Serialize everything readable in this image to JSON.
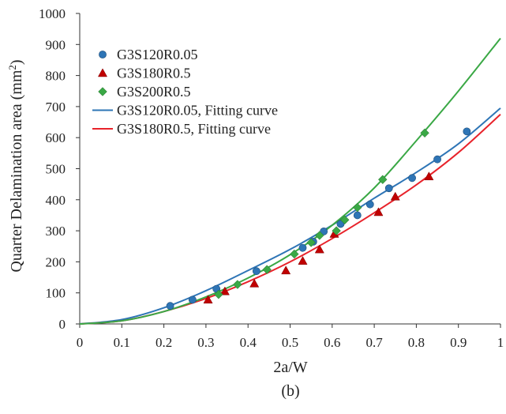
{
  "chart_data": {
    "type": "scatter",
    "xlabel": "2a/W",
    "ylabel_text": "Quarter Delamination area (mm",
    "ylabel_sup": "2",
    "ylabel_close": ")",
    "panel_label": "(b)",
    "xlim": [
      0,
      1
    ],
    "ylim": [
      0,
      1000
    ],
    "x_ticks": [
      "0",
      "0.1",
      "0.2",
      "0.3",
      "0.4",
      "0.5",
      "0.6",
      "0.7",
      "0.8",
      "0.9",
      "1"
    ],
    "y_ticks": [
      "0",
      "100",
      "200",
      "300",
      "400",
      "500",
      "600",
      "700",
      "800",
      "900",
      "1000"
    ],
    "grid": false,
    "legend_position": "top-left",
    "series": [
      {
        "name": "G3S120R0.05",
        "kind": "markers",
        "marker": "circle",
        "color": "#2e75b6",
        "points": [
          [
            0.215,
            58
          ],
          [
            0.268,
            78
          ],
          [
            0.325,
            113
          ],
          [
            0.42,
            170
          ],
          [
            0.53,
            245
          ],
          [
            0.555,
            265
          ],
          [
            0.58,
            298
          ],
          [
            0.62,
            322
          ],
          [
            0.66,
            350
          ],
          [
            0.69,
            385
          ],
          [
            0.735,
            437
          ],
          [
            0.79,
            470
          ],
          [
            0.85,
            530
          ],
          [
            0.92,
            620
          ]
        ]
      },
      {
        "name": "G3S180R0.5",
        "kind": "markers",
        "marker": "triangle",
        "color": "#c00000",
        "points": [
          [
            0.305,
            78
          ],
          [
            0.345,
            105
          ],
          [
            0.415,
            130
          ],
          [
            0.49,
            172
          ],
          [
            0.53,
            203
          ],
          [
            0.57,
            240
          ],
          [
            0.605,
            290
          ],
          [
            0.71,
            360
          ],
          [
            0.75,
            410
          ],
          [
            0.83,
            475
          ]
        ]
      },
      {
        "name": "G3S200R0.5",
        "kind": "markers",
        "marker": "diamond",
        "color": "#3aa845",
        "points": [
          [
            0.33,
            95
          ],
          [
            0.375,
            127
          ],
          [
            0.445,
            175
          ],
          [
            0.51,
            225
          ],
          [
            0.55,
            262
          ],
          [
            0.57,
            285
          ],
          [
            0.61,
            300
          ],
          [
            0.63,
            335
          ],
          [
            0.66,
            375
          ],
          [
            0.72,
            465
          ],
          [
            0.82,
            615
          ]
        ]
      },
      {
        "name": "G3S120R0.05, Fitting curve",
        "kind": "line",
        "color": "#2e75b6",
        "points": [
          [
            0,
            0
          ],
          [
            0.1,
            14
          ],
          [
            0.2,
            52
          ],
          [
            0.3,
            107
          ],
          [
            0.4,
            172
          ],
          [
            0.5,
            240
          ],
          [
            0.6,
            318
          ],
          [
            0.7,
            405
          ],
          [
            0.8,
            488
          ],
          [
            0.9,
            580
          ],
          [
            1,
            695
          ]
        ]
      },
      {
        "name": "G3S180R0.5, Fitting curve",
        "kind": "line",
        "color": "#e8232b",
        "points": [
          [
            0,
            0
          ],
          [
            0.1,
            10
          ],
          [
            0.2,
            40
          ],
          [
            0.3,
            82
          ],
          [
            0.4,
            136
          ],
          [
            0.5,
            200
          ],
          [
            0.6,
            275
          ],
          [
            0.7,
            358
          ],
          [
            0.8,
            448
          ],
          [
            0.9,
            552
          ],
          [
            1,
            675
          ]
        ]
      },
      {
        "name": "",
        "kind": "line",
        "color": "#3aa845",
        "points": [
          [
            0,
            0
          ],
          [
            0.1,
            10
          ],
          [
            0.2,
            40
          ],
          [
            0.3,
            87
          ],
          [
            0.4,
            148
          ],
          [
            0.5,
            223
          ],
          [
            0.6,
            318
          ],
          [
            0.7,
            438
          ],
          [
            0.8,
            590
          ],
          [
            0.9,
            750
          ],
          [
            1,
            920
          ]
        ]
      }
    ],
    "legend": [
      {
        "label": "G3S120R0.05",
        "marker": "circle",
        "color": "#2e75b6"
      },
      {
        "label": "G3S180R0.5",
        "marker": "triangle",
        "color": "#c00000"
      },
      {
        "label": "G3S200R0.5",
        "marker": "diamond",
        "color": "#3aa845"
      },
      {
        "label": "G3S120R0.05, Fitting curve",
        "marker": "line",
        "color": "#2e75b6"
      },
      {
        "label": "G3S180R0.5, Fitting curve",
        "marker": "line",
        "color": "#e8232b"
      }
    ]
  }
}
